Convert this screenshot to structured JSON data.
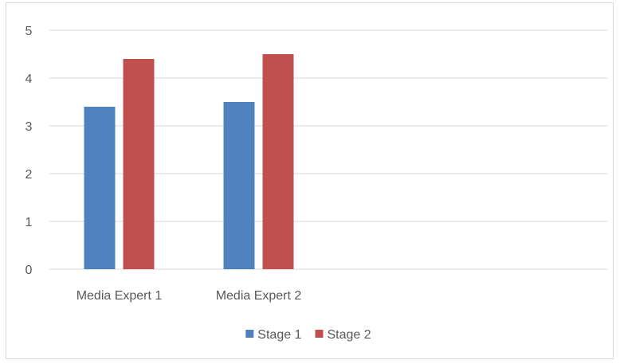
{
  "chart_data": {
    "type": "bar",
    "categories": [
      "Media Expert 1",
      "Media Expert 2",
      "",
      ""
    ],
    "series": [
      {
        "name": "Stage 1",
        "color": "#4f81bd",
        "values": [
          3.4,
          3.5,
          null,
          null
        ]
      },
      {
        "name": "Stage 2",
        "color": "#c0504d",
        "values": [
          4.4,
          4.5,
          null,
          null
        ]
      }
    ],
    "yticks": [
      0,
      1,
      2,
      3,
      4,
      5
    ],
    "ylim": [
      0,
      5
    ],
    "grid": true,
    "legend": "bottom",
    "title": "",
    "xlabel": "",
    "ylabel": ""
  }
}
